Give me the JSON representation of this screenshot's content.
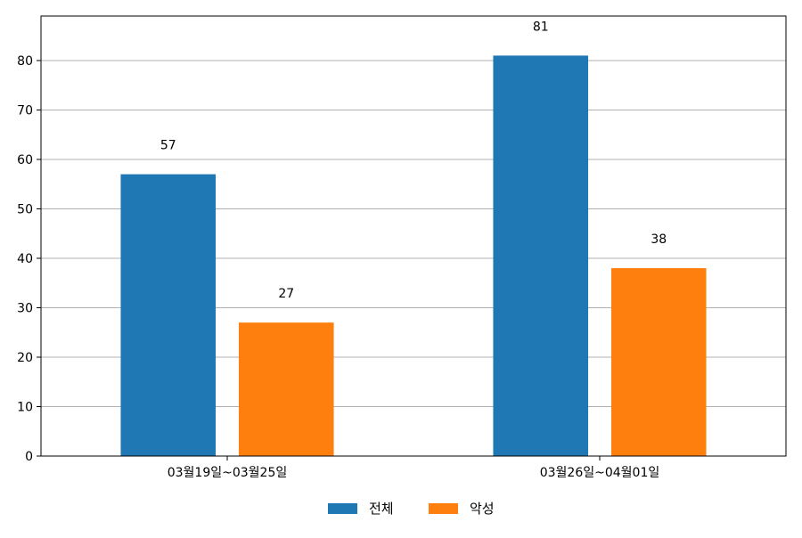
{
  "chart_data": {
    "type": "bar",
    "categories": [
      "03월19일~03월25일",
      "03월26일~04월01일"
    ],
    "series": [
      {
        "name": "전체",
        "values": [
          57,
          81
        ],
        "color": "#1f77b4"
      },
      {
        "name": "악성",
        "values": [
          27,
          38
        ],
        "color": "#ff7f0e"
      }
    ],
    "ylim": [
      0,
      89
    ],
    "yticks": [
      0,
      10,
      20,
      30,
      40,
      50,
      60,
      70,
      80
    ],
    "grid": "horizontal",
    "legend_position": "bottom-center",
    "data_labels": true
  }
}
